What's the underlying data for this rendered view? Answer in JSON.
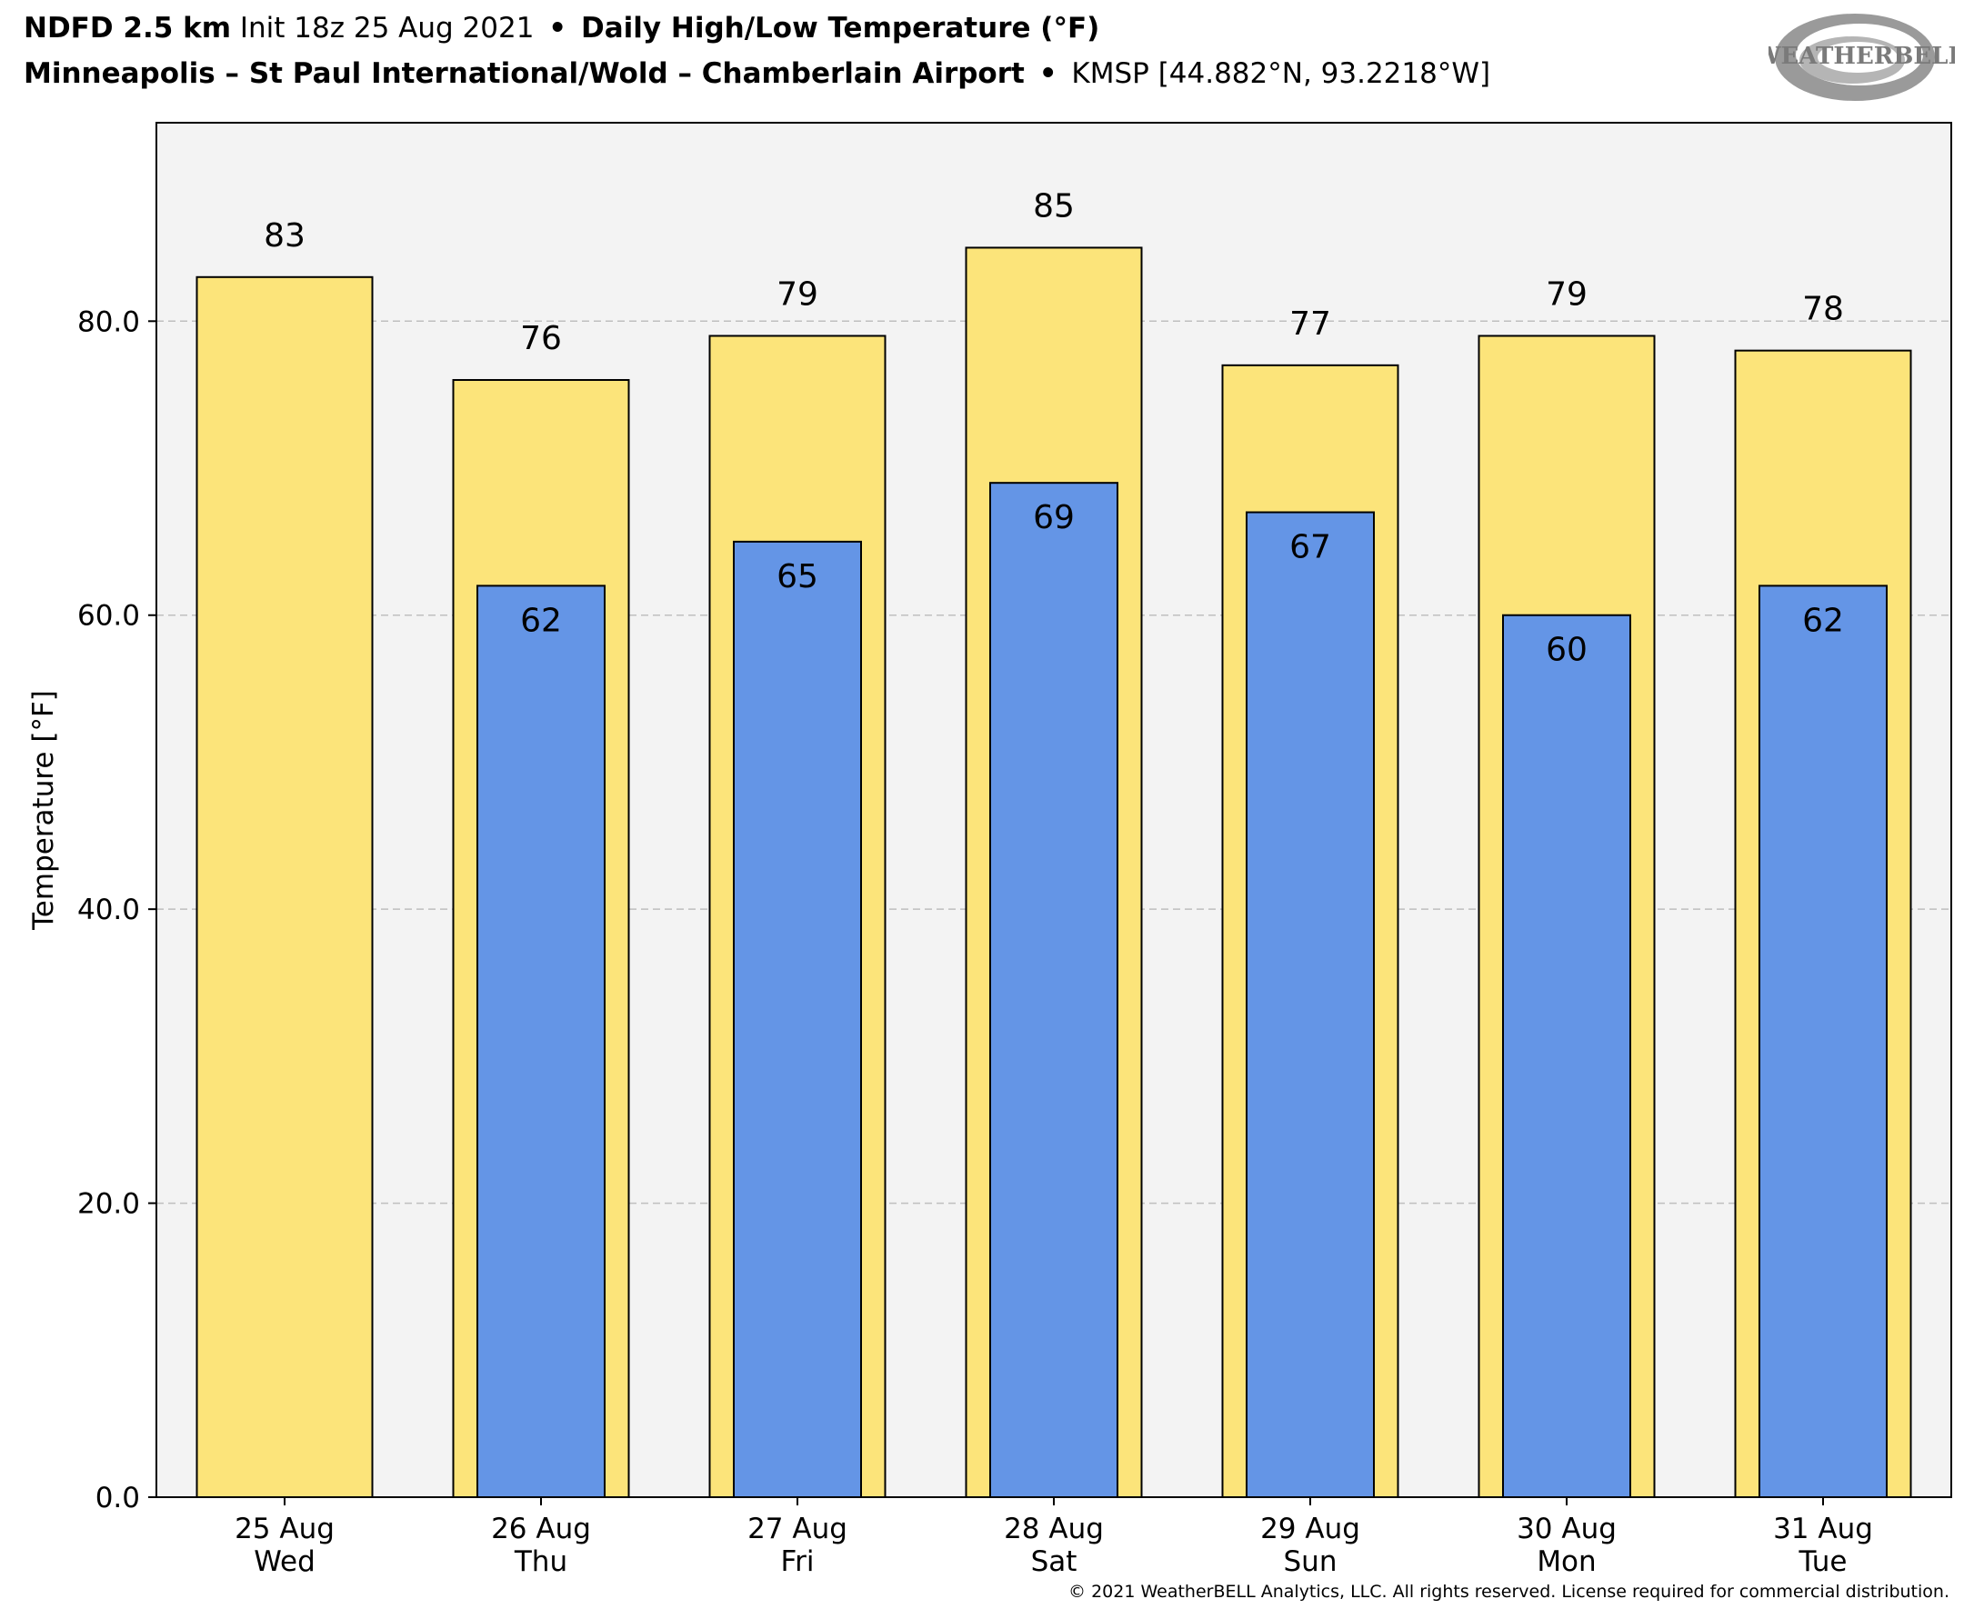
{
  "header": {
    "line1_model": "NDFD 2.5 km",
    "line1_init": "Init 18z 25 Aug 2021",
    "line1_product": "Daily High/Low Temperature (°F)",
    "line2_station": "Minneapolis – St Paul International/Wold – Chamberlain Airport",
    "line2_coords": "KMSP [44.882°N, 93.2218°W]",
    "separator": "•"
  },
  "logo": {
    "text": "WEATHERBELL",
    "icon": "weatherbell-swirl-logo"
  },
  "footer": {
    "copyright": "© 2021 WeatherBELL Analytics, LLC. All rights reserved. License required for commercial distribution."
  },
  "colors": {
    "high_bar": "#fce47a",
    "low_bar": "#6495e6",
    "plot_background": "#f3f3f3",
    "grid": "#bfbfbf"
  },
  "chart_data": {
    "type": "bar",
    "title": "",
    "xlabel": "",
    "ylabel": "Temperature [°F]",
    "ylim": [
      0,
      93.5
    ],
    "yticks": [
      0,
      20,
      40,
      60,
      80
    ],
    "ytick_labels": [
      "0.0",
      "20.0",
      "40.0",
      "60.0",
      "80.0"
    ],
    "grid": "horizontal dashed",
    "categories": [
      {
        "date": "25 Aug",
        "day": "Wed"
      },
      {
        "date": "26 Aug",
        "day": "Thu"
      },
      {
        "date": "27 Aug",
        "day": "Fri"
      },
      {
        "date": "28 Aug",
        "day": "Sat"
      },
      {
        "date": "29 Aug",
        "day": "Sun"
      },
      {
        "date": "30 Aug",
        "day": "Mon"
      },
      {
        "date": "31 Aug",
        "day": "Tue"
      }
    ],
    "series": [
      {
        "key": "high",
        "values": [
          83,
          76,
          79,
          85,
          77,
          79,
          78
        ]
      },
      {
        "key": "low",
        "values": [
          null,
          62,
          65,
          69,
          67,
          60,
          62
        ]
      }
    ]
  }
}
